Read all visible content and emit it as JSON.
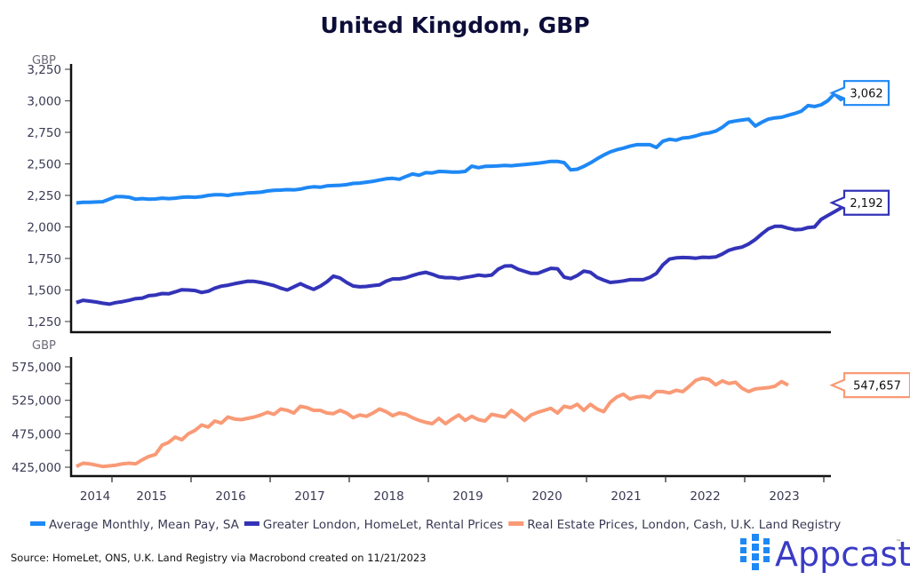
{
  "chart_data": [
    {
      "type": "line",
      "panel": "top",
      "title": "United Kingdom, GBP",
      "ylabel": "GBP",
      "ylim": [
        1200,
        3300
      ],
      "yticks": [
        1250,
        1500,
        1750,
        2000,
        2250,
        2500,
        2750,
        3000,
        3250
      ],
      "ytick_labels": [
        "1,250",
        "1,500",
        "1,750",
        "2,000",
        "2,250",
        "2,500",
        "2,750",
        "3,000",
        "3,250"
      ],
      "x_start": 2014.55,
      "x_step_months": 1,
      "series": [
        {
          "name": "Average Monthly, Mean Pay, SA",
          "color": "#1e88f5",
          "last_value_label": "3,062",
          "values": [
            2190,
            2195,
            2195,
            2198,
            2200,
            2220,
            2240,
            2240,
            2235,
            2220,
            2225,
            2220,
            2222,
            2228,
            2225,
            2228,
            2235,
            2238,
            2235,
            2240,
            2250,
            2255,
            2255,
            2250,
            2260,
            2262,
            2270,
            2272,
            2275,
            2285,
            2290,
            2292,
            2296,
            2294,
            2300,
            2312,
            2318,
            2315,
            2325,
            2328,
            2330,
            2335,
            2345,
            2348,
            2355,
            2362,
            2372,
            2382,
            2385,
            2378,
            2400,
            2420,
            2410,
            2430,
            2428,
            2440,
            2438,
            2435,
            2435,
            2440,
            2482,
            2470,
            2480,
            2482,
            2484,
            2487,
            2485,
            2490,
            2495,
            2500,
            2505,
            2512,
            2520,
            2520,
            2510,
            2452,
            2458,
            2480,
            2508,
            2540,
            2570,
            2595,
            2612,
            2625,
            2640,
            2652,
            2652,
            2652,
            2630,
            2680,
            2695,
            2688,
            2705,
            2710,
            2722,
            2738,
            2745,
            2760,
            2790,
            2830,
            2840,
            2848,
            2855,
            2800,
            2830,
            2855,
            2865,
            2870,
            2885,
            2900,
            2918,
            2962,
            2955,
            2968,
            3000,
            3055,
            3010,
            3050,
            3120,
            3058,
            3060,
            3062
          ]
        },
        {
          "name": "Greater London, HomeLet, Rental Prices",
          "color": "#3333b8",
          "last_value_label": "2,192",
          "values": [
            1400,
            1418,
            1412,
            1405,
            1395,
            1388,
            1400,
            1408,
            1418,
            1432,
            1436,
            1455,
            1460,
            1472,
            1470,
            1485,
            1502,
            1500,
            1496,
            1480,
            1490,
            1515,
            1530,
            1538,
            1550,
            1560,
            1570,
            1568,
            1560,
            1548,
            1535,
            1515,
            1500,
            1525,
            1550,
            1525,
            1505,
            1530,
            1565,
            1610,
            1595,
            1560,
            1532,
            1525,
            1528,
            1535,
            1540,
            1570,
            1588,
            1588,
            1598,
            1615,
            1630,
            1640,
            1625,
            1605,
            1598,
            1598,
            1590,
            1600,
            1608,
            1618,
            1612,
            1618,
            1665,
            1690,
            1692,
            1665,
            1648,
            1632,
            1632,
            1652,
            1672,
            1668,
            1602,
            1590,
            1615,
            1650,
            1640,
            1600,
            1578,
            1560,
            1565,
            1572,
            1582,
            1582,
            1582,
            1600,
            1632,
            1700,
            1745,
            1755,
            1758,
            1756,
            1752,
            1760,
            1758,
            1762,
            1785,
            1815,
            1830,
            1840,
            1865,
            1900,
            1945,
            1985,
            2005,
            2005,
            1990,
            1978,
            1980,
            1995,
            2000,
            2060,
            2090,
            2120,
            2150,
            2175,
            2192
          ]
        }
      ]
    },
    {
      "type": "line",
      "panel": "bottom",
      "ylabel": "GBP",
      "ylim": [
        415000,
        590000
      ],
      "yticks": [
        425000,
        475000,
        525000,
        575000
      ],
      "ytick_labels": [
        "425,000",
        "475,000",
        "525,000",
        "575,000"
      ],
      "minor_yticks": [
        450000,
        500000,
        550000
      ],
      "x_start": 2014.55,
      "x_step_months": 1,
      "xticks_year_labels": [
        "2014",
        "2015",
        "2016",
        "2017",
        "2018",
        "2019",
        "2020",
        "2021",
        "2022",
        "2023"
      ],
      "series": [
        {
          "name": "Real Estate Prices, London, Cash, U.K. Land Registry",
          "color": "#f99a76",
          "last_value_label": "547,657",
          "values": [
            426000,
            431000,
            430000,
            428000,
            426000,
            427000,
            428000,
            430000,
            431000,
            430000,
            436000,
            441000,
            444000,
            458000,
            462000,
            470000,
            466000,
            475000,
            480000,
            488000,
            485000,
            494000,
            491000,
            500000,
            497000,
            496000,
            498000,
            500000,
            503000,
            507000,
            504000,
            512000,
            510000,
            506000,
            516000,
            514000,
            510000,
            510000,
            506000,
            505000,
            510000,
            506000,
            499000,
            503000,
            501000,
            506000,
            512000,
            508000,
            502000,
            506000,
            504000,
            499000,
            495000,
            492000,
            490000,
            498000,
            490000,
            497000,
            503000,
            495000,
            501000,
            496000,
            494000,
            504000,
            502000,
            500000,
            510000,
            503000,
            495000,
            503000,
            507000,
            510000,
            513000,
            506000,
            516000,
            514000,
            519000,
            510000,
            519000,
            512000,
            508000,
            522000,
            530000,
            534000,
            527000,
            530000,
            531000,
            529000,
            538000,
            538000,
            536000,
            540000,
            538000,
            546000,
            555000,
            558000,
            556000,
            548000,
            554000,
            550000,
            552000,
            543000,
            538000,
            542000,
            543000,
            544000,
            546000,
            553000,
            547657
          ]
        }
      ]
    }
  ],
  "title": "United Kingdom, GBP",
  "top_unit_label": "GBP",
  "bottom_unit_label": "GBP",
  "legend": [
    {
      "label": "Average Monthly, Mean Pay, SA",
      "color": "#1e88f5"
    },
    {
      "label": "Greater London, HomeLet, Rental Prices",
      "color": "#3333b8"
    },
    {
      "label": "Real Estate Prices, London, Cash, U.K. Land Registry",
      "color": "#f99a76"
    }
  ],
  "source": "Source: HomeLet, ONS, U.K. Land Registry via Macrobond created on 11/21/2023",
  "logo": {
    "text": "Appcast",
    "tm": "™",
    "color": "#3a3bc4",
    "mark_color": "#1e88f5"
  }
}
